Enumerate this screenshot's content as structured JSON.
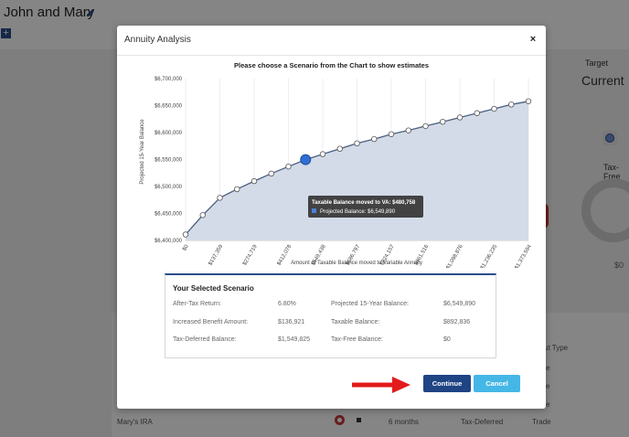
{
  "background": {
    "page_title": "John and Mary",
    "add_label": "+",
    "target_label": "Target",
    "current_label": "Current",
    "tax_free_label": "Tax-Free",
    "tax_free_value": "$0",
    "table": {
      "partial_header": "ut Type",
      "partial_cells": [
        "e",
        "e",
        "e"
      ],
      "row": {
        "name": "Mary's IRA",
        "duration": "6 months",
        "tax_type": "Tax-Deferred",
        "action": "Trade"
      }
    }
  },
  "modal": {
    "title": "Annuity Analysis",
    "close_label": "×",
    "chart_heading": "Please choose a Scenario from the Chart to show estimates",
    "tooltip": {
      "title": "Taxable Balance moved to VA: $480,758",
      "item": "Projected Balance: $6,549,890"
    },
    "scenario": {
      "heading": "Your Selected Scenario",
      "rows": [
        {
          "label1": "After-Tax Return:",
          "value1": "6.80%",
          "label2": "Projected 15-Year Balance:",
          "value2": "$6,549,890"
        },
        {
          "label1": "Increased Benefit Amount:",
          "value1": "$136,921",
          "label2": "Taxable Balance:",
          "value2": "$892,836"
        },
        {
          "label1": "Tax-Deferred Balance:",
          "value1": "$1,549,825",
          "label2": "Tax-Free Balance:",
          "value2": "$0"
        }
      ]
    },
    "buttons": {
      "continue": "Continue",
      "cancel": "Cancel"
    }
  },
  "colors": {
    "primary_button": "#1f4484",
    "secondary_button": "#45b7e6",
    "area_fill": "#d3dbe8",
    "line": "#4a5e82",
    "selected_point": "#2f6fd1",
    "arrow": "#e31b1b"
  },
  "chart_data": {
    "type": "area",
    "title": "Please choose a Scenario from the Chart to show estimates",
    "xlabel": "Amount of Taxable Balance moved to Variable Annuity",
    "ylabel": "Projected 15-Year Balance",
    "x_tick_labels": [
      "$0",
      "$137,359",
      "$274,719",
      "$412,078",
      "$549,438",
      "$686,797",
      "$824,157",
      "$961,516",
      "$1,098,876",
      "$1,236,235",
      "$1,373,594"
    ],
    "y_tick_labels": [
      "$6,400,000",
      "$6,450,000",
      "$6,500,000",
      "$6,550,000",
      "$6,600,000",
      "$6,650,000",
      "$6,700,000"
    ],
    "ylim": [
      6400000,
      6700000
    ],
    "xlim": [
      0,
      1373594
    ],
    "grid": "vertical",
    "x": [
      0,
      68680,
      137359,
      206039,
      274719,
      343398,
      412078,
      480758,
      549438,
      618117,
      686797,
      755477,
      824157,
      892836,
      961516,
      1030196,
      1098876,
      1167555,
      1236235,
      1304915,
      1373594
    ],
    "y": [
      6411000,
      6447000,
      6479000,
      6495000,
      6510000,
      6524000,
      6537000,
      6549890,
      6560000,
      6570000,
      6580000,
      6588000,
      6597000,
      6604000,
      6612000,
      6620000,
      6628000,
      6636000,
      6644000,
      6652000,
      6658000
    ],
    "selected_index": 7
  }
}
